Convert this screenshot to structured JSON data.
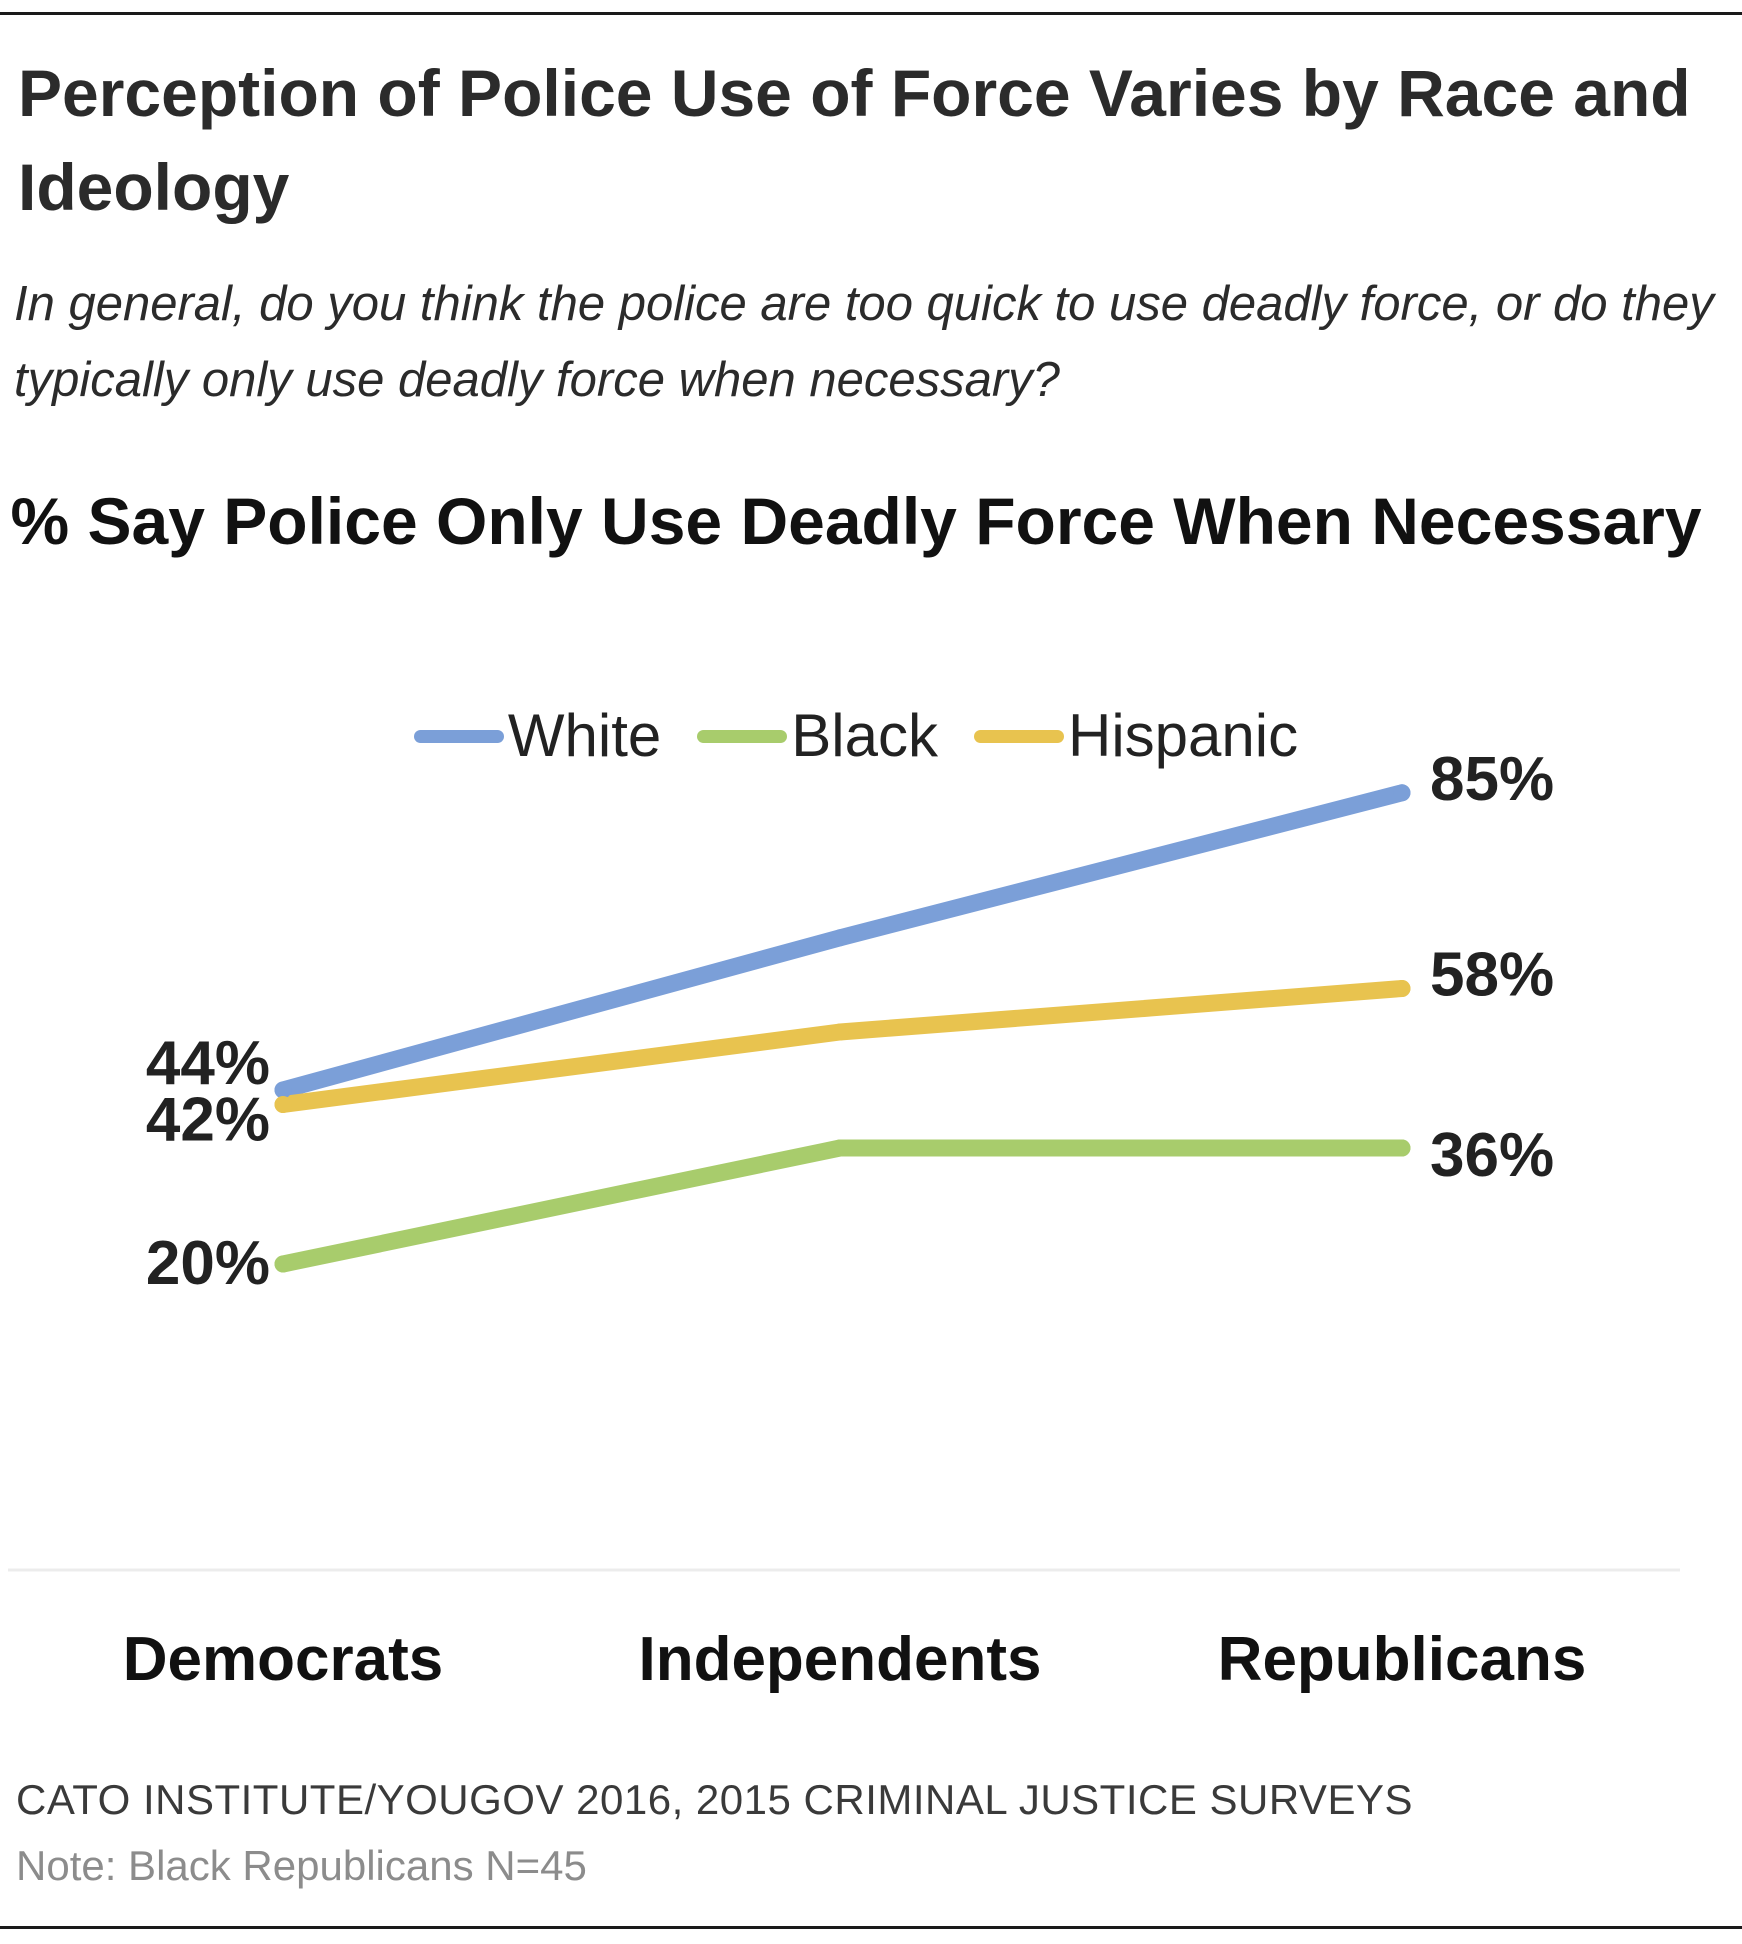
{
  "header": {
    "title": "Perception of Police Use of Force Varies by Race and Ideology",
    "subtitle": "In general, do you think the police are too quick to use deadly force, or do they typically only use deadly force when necessary?"
  },
  "footer": {
    "source": "CATO INSTITUTE/YOUGOV 2016, 2015 CRIMINAL JUSTICE SURVEYS",
    "note": "Note: Black Republicans N=45"
  },
  "chart_data": {
    "type": "line",
    "title": "% Say Police Only Use Deadly Force When Necessary",
    "categories": [
      "Democrats",
      "Independents",
      "Republicans"
    ],
    "series": [
      {
        "name": "White",
        "values": [
          44,
          65,
          85
        ],
        "labels": [
          "44%",
          "",
          "85%"
        ],
        "color": "#7b9fd8"
      },
      {
        "name": "Black",
        "values": [
          20,
          36,
          36
        ],
        "labels": [
          "20%",
          "",
          "36%"
        ],
        "color": "#a8cc6c"
      },
      {
        "name": "Hispanic",
        "values": [
          42,
          52,
          58
        ],
        "labels": [
          "42%",
          "",
          "58%"
        ],
        "color": "#e8c34f"
      }
    ],
    "xlabel": "",
    "ylabel": "",
    "ylim": [
      0,
      100
    ],
    "grid": false,
    "legend": "top-center"
  }
}
